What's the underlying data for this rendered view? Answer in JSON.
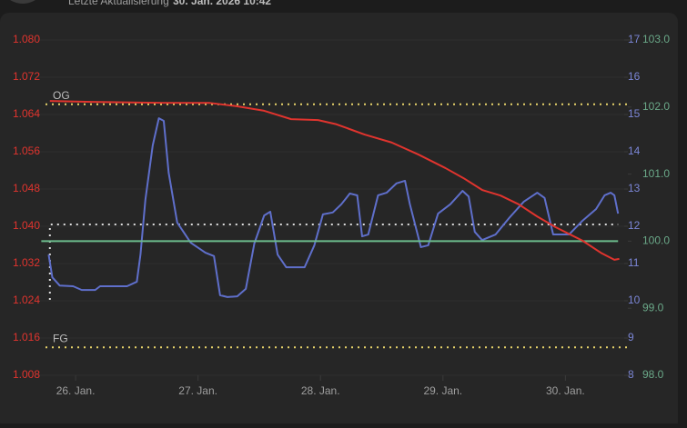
{
  "header": {
    "label": "Letzte Aktualisierung",
    "timestamp": "30. Jan. 2026 10:42"
  },
  "chart_data": {
    "type": "line",
    "xlim": [
      -0.32,
      4.51
    ],
    "xticks": [
      {
        "value": 0,
        "label": "26. Jan."
      },
      {
        "value": 1,
        "label": "27. Jan."
      },
      {
        "value": 2,
        "label": "28. Jan."
      },
      {
        "value": 3,
        "label": "29. Jan."
      },
      {
        "value": 4,
        "label": "30. Jan."
      }
    ],
    "ylim": [
      1.008,
      1.08
    ],
    "yticks": [
      {
        "value": 1.08,
        "label": "1.080"
      },
      {
        "value": 1.072,
        "label": "1.072"
      },
      {
        "value": 1.064,
        "label": "1.064"
      },
      {
        "value": 1.056,
        "label": "1.056"
      },
      {
        "value": 1.048,
        "label": "1.048"
      },
      {
        "value": 1.04,
        "label": "1.040"
      },
      {
        "value": 1.032,
        "label": "1.032"
      },
      {
        "value": 1.024,
        "label": "1.024"
      },
      {
        "value": 1.016,
        "label": "1.016"
      },
      {
        "value": 1.008,
        "label": "1.008"
      }
    ],
    "ytick_color": "#e0342e",
    "y2lim": [
      8,
      17
    ],
    "y2ticks": [
      17,
      16,
      15,
      14,
      13,
      12,
      11,
      10,
      9,
      8
    ],
    "y2tick_color": "#7b86d6",
    "y3lim": [
      98,
      103
    ],
    "y3ticks": [
      {
        "value": 103,
        "label": "103.0"
      },
      {
        "value": 102,
        "label": "102.0"
      },
      {
        "value": 101,
        "label": "101.0"
      },
      {
        "value": 100,
        "label": "100.0"
      },
      {
        "value": 99,
        "label": "99.0"
      },
      {
        "value": 98,
        "label": "98.0"
      }
    ],
    "y3tick_color": "#6aa888",
    "series": [
      {
        "color": "#5f6fcb",
        "axis": "y2",
        "x": [
          -0.22,
          -0.19,
          -0.13,
          -0.02,
          0.05,
          0.16,
          0.2,
          0.42,
          0.5,
          0.53,
          0.57,
          0.63,
          0.68,
          0.72,
          0.76,
          0.83,
          0.94,
          1.06,
          1.13,
          1.18,
          1.24,
          1.32,
          1.39,
          1.46,
          1.54,
          1.59,
          1.65,
          1.72,
          1.87,
          1.95,
          2.02,
          2.1,
          2.17,
          2.24,
          2.3,
          2.34,
          2.39,
          2.47,
          2.54,
          2.62,
          2.69,
          2.73,
          2.82,
          2.88,
          2.96,
          3.06,
          3.16,
          3.21,
          3.26,
          3.32,
          3.43,
          3.54,
          3.66,
          3.77,
          3.83,
          3.9,
          4.03,
          4.14,
          4.25,
          4.32,
          4.37,
          4.4,
          4.43
        ],
        "values": [
          11.24,
          10.63,
          10.41,
          10.39,
          10.29,
          10.29,
          10.39,
          10.39,
          10.51,
          11.24,
          12.71,
          14.17,
          14.9,
          14.83,
          13.44,
          12.1,
          11.56,
          11.29,
          11.2,
          10.15,
          10.1,
          10.12,
          10.32,
          11.54,
          12.29,
          12.39,
          11.24,
          10.9,
          10.9,
          11.49,
          12.32,
          12.37,
          12.59,
          12.88,
          12.83,
          11.73,
          11.78,
          12.83,
          12.9,
          13.15,
          13.22,
          12.59,
          11.44,
          11.49,
          12.34,
          12.59,
          12.95,
          12.8,
          11.85,
          11.63,
          11.78,
          12.22,
          12.66,
          12.9,
          12.76,
          11.78,
          11.78,
          12.15,
          12.46,
          12.83,
          12.9,
          12.83,
          12.34
        ]
      },
      {
        "color": "#6cbb8c",
        "axis": "y3",
        "x": [
          -0.28,
          4.43
        ],
        "values": [
          100,
          100
        ]
      },
      {
        "color": "#e0342e",
        "axis": "y",
        "x": [
          -0.21,
          0.13,
          0.72,
          1.09,
          1.31,
          1.54,
          1.76,
          1.98,
          2.13,
          2.36,
          2.58,
          2.8,
          3.02,
          3.17,
          3.32,
          3.47,
          3.62,
          3.77,
          3.92,
          4.14,
          4.29,
          4.4,
          4.44
        ],
        "values": [
          1.0669,
          1.0667,
          1.0665,
          1.0665,
          1.0658,
          1.0648,
          1.063,
          1.0628,
          1.0619,
          1.0597,
          1.058,
          1.0554,
          1.0525,
          1.0503,
          1.0478,
          1.0466,
          1.0447,
          1.0421,
          1.0398,
          1.0369,
          1.0343,
          1.0328,
          1.033
        ]
      }
    ],
    "reference_lines": [
      {
        "label": "OG",
        "value": 1.0662,
        "color": "#e8d46a"
      },
      {
        "label": "FG",
        "value": 1.014,
        "color": "#e8d46a"
      }
    ],
    "guide": {
      "color": "#dddddd",
      "x": [
        -0.21,
        -0.21,
        4.43
      ],
      "values": [
        1.0242,
        1.0404,
        1.0404
      ]
    }
  }
}
